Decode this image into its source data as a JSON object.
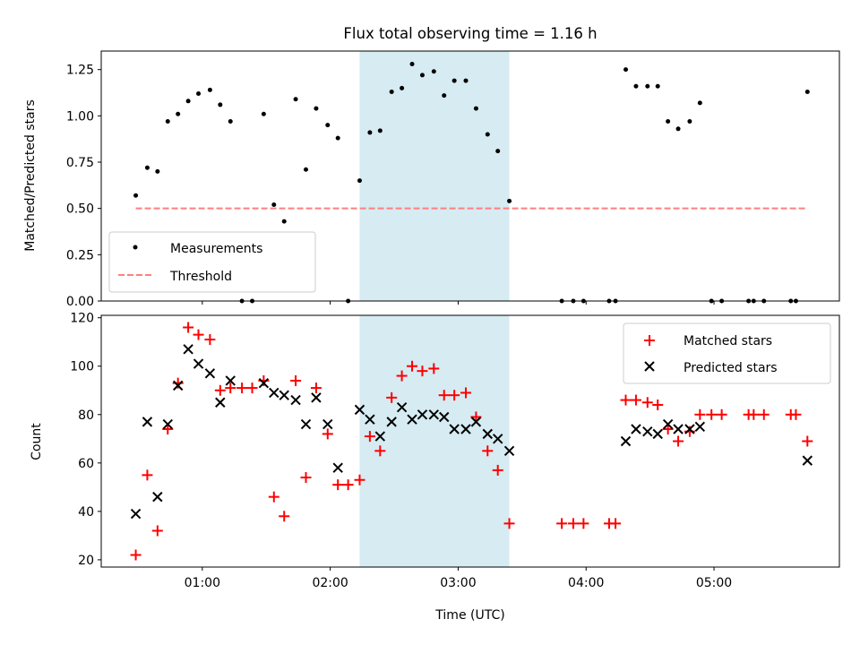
{
  "chart_data": [
    {
      "type": "scatter",
      "title": "Flux total observing time = 1.16 h",
      "ylabel": "Matched/Predicted stars",
      "xlabel": "",
      "xlim": [
        0.21,
        5.98
      ],
      "ylim": [
        0,
        1.35
      ],
      "yticks": [
        0.0,
        0.25,
        0.5,
        0.75,
        1.0,
        1.25
      ],
      "ytick_labels": [
        "0.00",
        "0.25",
        "0.50",
        "0.75",
        "1.00",
        "1.25"
      ],
      "highlight_span": [
        2.23,
        3.4
      ],
      "threshold": {
        "value": 0.5,
        "x_range": [
          0.48,
          5.73
        ]
      },
      "legend": {
        "placement": "lower-left",
        "entries": [
          "Measurements",
          "Threshold"
        ]
      },
      "series": [
        {
          "name": "Measurements",
          "x": [
            0.48,
            0.57,
            0.65,
            0.73,
            0.81,
            0.89,
            0.97,
            1.06,
            1.14,
            1.22,
            1.31,
            1.39,
            1.48,
            1.56,
            1.64,
            1.73,
            1.81,
            1.89,
            1.98,
            2.06,
            2.14,
            2.23,
            2.31,
            2.39,
            2.48,
            2.56,
            2.64,
            2.72,
            2.81,
            2.89,
            2.97,
            3.06,
            3.14,
            3.23,
            3.31,
            3.4,
            3.81,
            3.9,
            3.98,
            4.18,
            4.23,
            4.31,
            4.39,
            4.48,
            4.56,
            4.64,
            4.72,
            4.81,
            4.89,
            4.98,
            5.06,
            5.27,
            5.31,
            5.39,
            5.6,
            5.64,
            5.73
          ],
          "y": [
            0.57,
            0.72,
            0.7,
            0.97,
            1.01,
            1.08,
            1.12,
            1.14,
            1.06,
            0.97,
            0,
            0,
            1.01,
            0.52,
            0.43,
            1.09,
            0.71,
            1.04,
            0.95,
            0.88,
            0,
            0.65,
            0.91,
            0.92,
            1.13,
            1.15,
            1.28,
            1.22,
            1.24,
            1.11,
            1.19,
            1.19,
            1.04,
            0.9,
            0.81,
            0.54,
            0,
            0,
            0,
            0,
            0,
            1.25,
            1.16,
            1.16,
            1.16,
            0.97,
            0.93,
            0.97,
            1.07,
            0,
            0,
            0,
            0,
            0,
            0,
            0,
            1.13
          ]
        }
      ]
    },
    {
      "type": "scatter",
      "title": "",
      "xlabel": "Time (UTC)",
      "ylabel": "Count",
      "xlim": [
        0.21,
        5.98
      ],
      "ylim": [
        17,
        121
      ],
      "yticks": [
        20,
        40,
        60,
        80,
        100,
        120
      ],
      "ytick_labels": [
        "20",
        "40",
        "60",
        "80",
        "100",
        "120"
      ],
      "xticks": [
        1,
        2,
        3,
        4,
        5
      ],
      "xtick_labels": [
        "01:00",
        "02:00",
        "03:00",
        "04:00",
        "05:00"
      ],
      "highlight_span": [
        2.23,
        3.4
      ],
      "legend": {
        "placement": "upper-right",
        "entries": [
          "Matched stars",
          "Predicted stars"
        ]
      },
      "series": [
        {
          "name": "Matched stars",
          "color": "#ff0000",
          "x": [
            0.48,
            0.57,
            0.65,
            0.73,
            0.81,
            0.89,
            0.97,
            1.06,
            1.14,
            1.22,
            1.31,
            1.39,
            1.48,
            1.56,
            1.64,
            1.73,
            1.81,
            1.89,
            1.98,
            2.06,
            2.14,
            2.23,
            2.31,
            2.39,
            2.48,
            2.56,
            2.64,
            2.72,
            2.81,
            2.89,
            2.97,
            3.06,
            3.14,
            3.23,
            3.31,
            3.4,
            3.81,
            3.9,
            3.98,
            4.18,
            4.23,
            4.31,
            4.39,
            4.48,
            4.56,
            4.64,
            4.72,
            4.81,
            4.89,
            4.98,
            5.06,
            5.27,
            5.31,
            5.39,
            5.6,
            5.64,
            5.73
          ],
          "y": [
            22,
            55,
            32,
            74,
            93,
            116,
            113,
            111,
            90,
            91,
            91,
            91,
            94,
            46,
            38,
            94,
            54,
            91,
            72,
            51,
            51,
            53,
            71,
            65,
            87,
            96,
            100,
            98,
            99,
            88,
            88,
            89,
            79,
            65,
            57,
            35,
            35,
            35,
            35,
            35,
            35,
            86,
            86,
            85,
            84,
            74,
            69,
            73,
            80,
            80,
            80,
            80,
            80,
            80,
            80,
            80,
            69
          ]
        },
        {
          "name": "Predicted stars",
          "color": "#000000",
          "x": [
            0.48,
            0.57,
            0.65,
            0.73,
            0.81,
            0.89,
            0.97,
            1.06,
            1.14,
            1.22,
            1.31,
            1.39,
            1.48,
            1.56,
            1.64,
            1.73,
            1.81,
            1.89,
            1.98,
            2.06,
            2.14,
            2.23,
            2.31,
            2.39,
            2.48,
            2.56,
            2.64,
            2.72,
            2.81,
            2.89,
            2.97,
            3.06,
            3.14,
            3.23,
            3.31,
            3.4,
            4.31,
            4.39,
            4.48,
            4.56,
            4.64,
            4.72,
            4.81,
            4.89,
            5.73
          ],
          "y": [
            39,
            77,
            46,
            76,
            92,
            107,
            101,
            97,
            85,
            94,
            null,
            null,
            93,
            89,
            88,
            86,
            76,
            87,
            76,
            58,
            null,
            82,
            78,
            71,
            77,
            83,
            78,
            80,
            80,
            79,
            74,
            74,
            77,
            72,
            70,
            65,
            69,
            74,
            73,
            72,
            76,
            74,
            74,
            75,
            61
          ]
        }
      ]
    }
  ]
}
